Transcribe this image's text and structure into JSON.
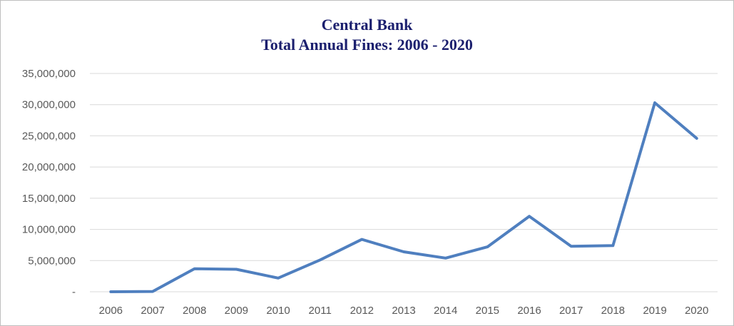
{
  "chart_data": {
    "type": "line",
    "title": "Central Bank",
    "subtitle": "Total Annual Fines: 2006 - 2020",
    "xlabel": "",
    "ylabel": "",
    "x": [
      "2006",
      "2007",
      "2008",
      "2009",
      "2010",
      "2011",
      "2012",
      "2013",
      "2014",
      "2015",
      "2016",
      "2017",
      "2018",
      "2019",
      "2020"
    ],
    "series": [
      {
        "values": [
          0,
          50000,
          3700000,
          3600000,
          2200000,
          5100000,
          8400000,
          6400000,
          5400000,
          7200000,
          12100000,
          7300000,
          7400000,
          30300000,
          24600000
        ],
        "color": "#4f7fbf"
      }
    ],
    "ylim": [
      0,
      35000000
    ],
    "yticks": [
      0,
      5000000,
      10000000,
      15000000,
      20000000,
      25000000,
      30000000,
      35000000
    ],
    "ytick_labels": [
      "-",
      "5,000,000",
      "10,000,000",
      "15,000,000",
      "20,000,000",
      "25,000,000",
      "30,000,000",
      "35,000,000"
    ],
    "grid": true,
    "gridline_color": "#d9d9d9",
    "legend": false
  }
}
